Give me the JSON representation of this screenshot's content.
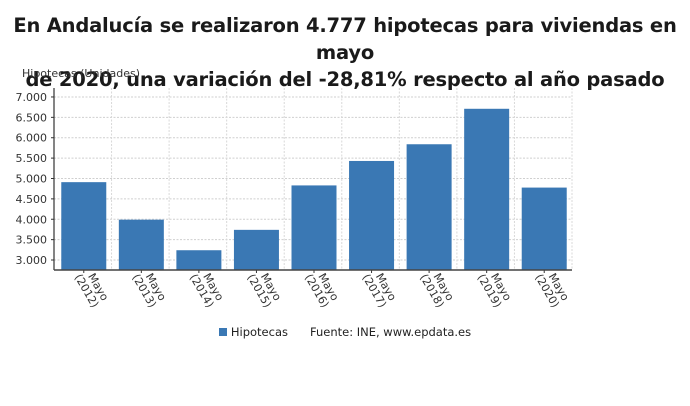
{
  "chart_data": {
    "type": "bar",
    "title": "En Andalucía se realizaron 4.777 hipotecas para viviendas en mayo de 2020, una variación del -28,81% respecto al año pasado",
    "title_lines": [
      "En Andalucía se realizaron 4.777 hipotecas para viviendas en mayo",
      "de 2020, una variación del -28,81% respecto al año pasado"
    ],
    "ylabel": "Hipotecas (Unidades)",
    "xlabel": "",
    "categories": [
      "Mayo (2012)",
      "Mayo (2013)",
      "Mayo (2014)",
      "Mayo (2015)",
      "Mayo (2016)",
      "Mayo (2017)",
      "Mayo (2018)",
      "Mayo (2019)",
      "Mayo (2020)"
    ],
    "category_lines": [
      [
        "Mayo",
        "(2012)"
      ],
      [
        "Mayo",
        "(2013)"
      ],
      [
        "Mayo",
        "(2014)"
      ],
      [
        "Mayo",
        "(2015)"
      ],
      [
        "Mayo",
        "(2016)"
      ],
      [
        "Mayo",
        "(2017)"
      ],
      [
        "Mayo",
        "(2018)"
      ],
      [
        "Mayo",
        "(2019)"
      ],
      [
        "Mayo",
        "(2020)"
      ]
    ],
    "series": [
      {
        "name": "Hipotecas",
        "color": "#3a78b4",
        "values": [
          4910,
          3990,
          3240,
          3740,
          4830,
          5430,
          5840,
          6710,
          4777
        ]
      }
    ],
    "yticks": [
      3000,
      3500,
      4000,
      4500,
      5000,
      5500,
      6000,
      6500,
      7000
    ],
    "ytick_labels": [
      "3.000",
      "3.500",
      "4.000",
      "4.500",
      "5.000",
      "5.500",
      "6.000",
      "6.500",
      "7.000"
    ],
    "ylim": [
      2755,
      7220
    ],
    "grid": true,
    "legend_position": "bottom",
    "source": "Fuente: INE, www.epdata.es"
  },
  "legend": {
    "series_label": "Hipotecas",
    "source": "Fuente: INE, www.epdata.es"
  },
  "colors": {
    "bar": "#3a78b4",
    "grid": "#cfcfcf",
    "axis": "#333333"
  }
}
